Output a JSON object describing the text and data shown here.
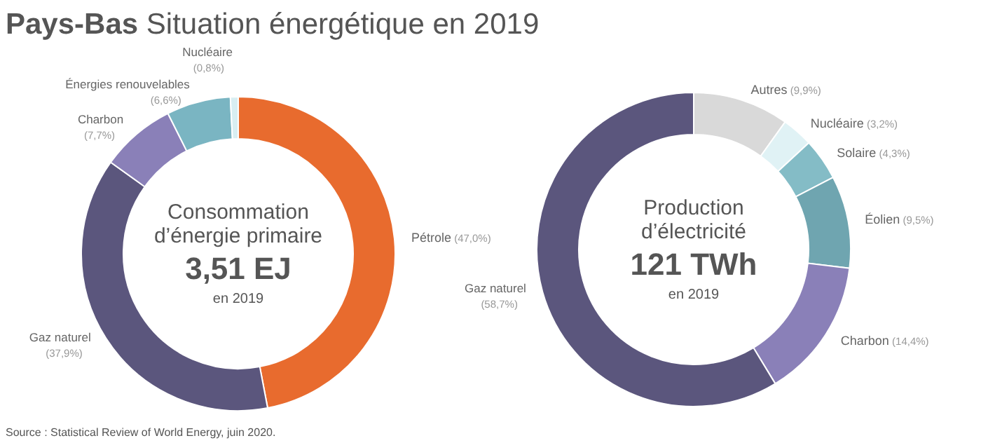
{
  "chart_data": [
    {
      "type": "donut",
      "title": "Pays-Bas",
      "subtitle": "Situation énergétique en 2019",
      "categories": [
        "Pétrole",
        "Gaz naturel",
        "Charbon",
        "Énergies renouvelables",
        "Nucléaire"
      ],
      "values": [
        47.0,
        37.9,
        7.7,
        6.6,
        0.8
      ],
      "value_labels": [
        "(47,0%)",
        "(37,9%)",
        "(7,7%)",
        "(6,6%)",
        "(0,8%)"
      ],
      "colors": [
        "#e86b2e",
        "#5b567d",
        "#8a80b8",
        "#7ab5c2",
        "#d8eef2"
      ],
      "annotations": [
        "Consommation",
        "d’énergie primaire",
        "3,51 EJ",
        "en 2019",
        "Source : Statistical Review of World Energy, juin 2020."
      ]
    },
    {
      "type": "donut",
      "categories": [
        "Autres",
        "Nucléaire",
        "Solaire",
        "Éolien",
        "Charbon",
        "Gaz naturel"
      ],
      "values": [
        9.9,
        3.2,
        4.3,
        9.5,
        14.4,
        58.7
      ],
      "value_labels": [
        "(9,9%)",
        "(3,2%)",
        "(4,3%)",
        "(9,5%)",
        "(14,4%)",
        "(58,7%)"
      ],
      "colors": [
        "#d9d9d9",
        "#e0f2f5",
        "#84bcc6",
        "#6fa5b0",
        "#8a80b8",
        "#5b567d"
      ],
      "annotations": [
        "Production",
        "d’électricité",
        "121 TWh",
        "en 2019"
      ]
    }
  ]
}
